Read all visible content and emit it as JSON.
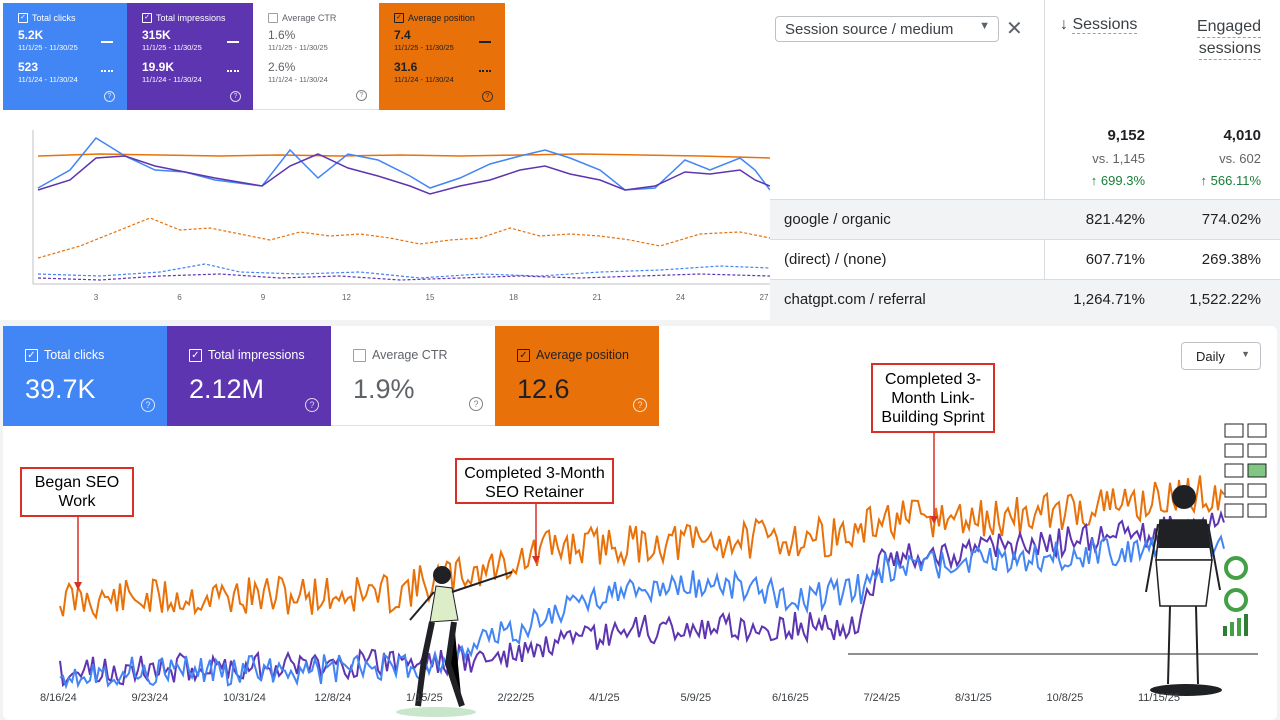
{
  "top_cards": [
    {
      "label": "Total clicks",
      "value1": "5.2K",
      "range1": "11/1/25 - 11/30/25",
      "value2": "523",
      "range2": "11/1/24 - 11/30/24",
      "bg": "#4285f4",
      "checked": true
    },
    {
      "label": "Total impressions",
      "value1": "315K",
      "range1": "11/1/25 - 11/30/25",
      "value2": "19.9K",
      "range2": "11/1/24 - 11/30/24",
      "bg": "#5e35b1",
      "checked": true
    },
    {
      "label": "Average CTR",
      "value1": "1.6%",
      "range1": "11/1/25 - 11/30/25",
      "value2": "2.6%",
      "range2": "11/1/24 - 11/30/24",
      "bg": "#ffffff",
      "checked": false
    },
    {
      "label": "Average position",
      "value1": "7.4",
      "range1": "11/1/25 - 11/30/25",
      "value2": "31.6",
      "range2": "11/1/24 - 11/30/24",
      "bg": "#e8710a",
      "checked": true
    }
  ],
  "top_chart_ticks": [
    "3",
    "6",
    "9",
    "12",
    "15",
    "18",
    "21",
    "24",
    "27"
  ],
  "ga": {
    "dimension": "Session source / medium",
    "col1": "Sessions",
    "col2_line1": "Engaged",
    "col2_line2": "sessions",
    "total1": "9,152",
    "vs1": "vs. 1,145",
    "change1": "↑ 699.3%",
    "total2": "4,010",
    "vs2": "vs. 602",
    "change2": "↑ 566.11%",
    "rows": [
      {
        "source": "google / organic",
        "c1": "821.42%",
        "c2": "774.02%"
      },
      {
        "source": "(direct) / (none)",
        "c1": "607.71%",
        "c2": "269.38%"
      },
      {
        "source": "chatgpt.com / referral",
        "c1": "1,264.71%",
        "c2": "1,522.22%"
      }
    ]
  },
  "bottom_cards": [
    {
      "label": "Total clicks",
      "value": "39.7K",
      "checked": true
    },
    {
      "label": "Total impressions",
      "value": "2.12M",
      "checked": true
    },
    {
      "label": "Average CTR",
      "value": "1.9%",
      "checked": false
    },
    {
      "label": "Average position",
      "value": "12.6",
      "checked": true
    }
  ],
  "granularity": "Daily",
  "callouts": {
    "began": "Began SEO Work",
    "retainer": "Completed 3-Month SEO Retainer",
    "sprint": "Completed 3-Month Link-Building Sprint"
  },
  "x_ticks": [
    "8/16/24",
    "9/23/24",
    "10/31/24",
    "12/8/24",
    "1/15/25",
    "2/22/25",
    "4/1/25",
    "5/9/25",
    "6/16/25",
    "7/24/25",
    "8/31/25",
    "10/8/25",
    "11/15/25"
  ],
  "colors": {
    "clicks": "#4285f4",
    "impressions": "#5e35b1",
    "position": "#e8710a",
    "callout": "#d93025",
    "up": "#188038"
  }
}
